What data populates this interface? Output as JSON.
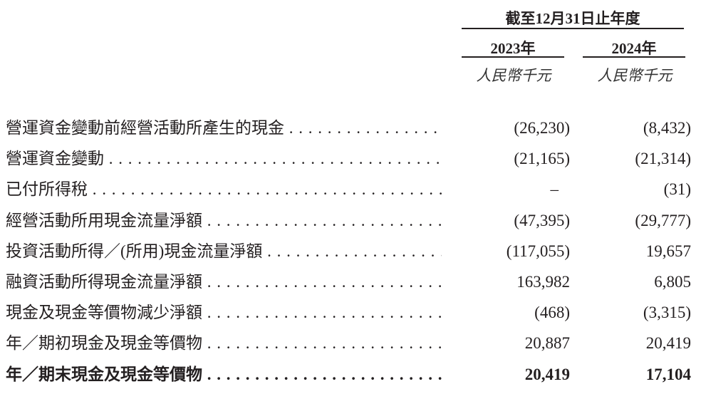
{
  "header": {
    "period": "截至12月31日止年度",
    "columns": [
      {
        "year": "2023年",
        "unit": "人民幣千元"
      },
      {
        "year": "2024年",
        "unit": "人民幣千元"
      }
    ]
  },
  "rows": [
    {
      "label": "營運資金變動前經營活動所產生的現金",
      "v2023": "(26,230)",
      "v2024": "(8,432)"
    },
    {
      "label": "營運資金變動",
      "v2023": "(21,165)",
      "v2024": "(21,314)"
    },
    {
      "label": "已付所得稅",
      "v2023": "–",
      "v2024": "(31)"
    },
    {
      "label": "經營活動所用現金流量淨額",
      "v2023": "(47,395)",
      "v2024": "(29,777)"
    },
    {
      "label": "投資活動所得／(所用)現金流量淨額",
      "v2023": "(117,055)",
      "v2024": "19,657"
    },
    {
      "label": "融資活動所得現金流量淨額",
      "v2023": "163,982",
      "v2024": "6,805"
    },
    {
      "label": "現金及現金等價物減少淨額",
      "v2023": "(468)",
      "v2024": "(3,315)"
    },
    {
      "label": "年／期初現金及現金等價物",
      "v2023": "20,887",
      "v2024": "20,419"
    },
    {
      "label": "年／期末現金及現金等價物",
      "v2023": "20,419",
      "v2024": "17,104",
      "bold": true
    }
  ]
}
